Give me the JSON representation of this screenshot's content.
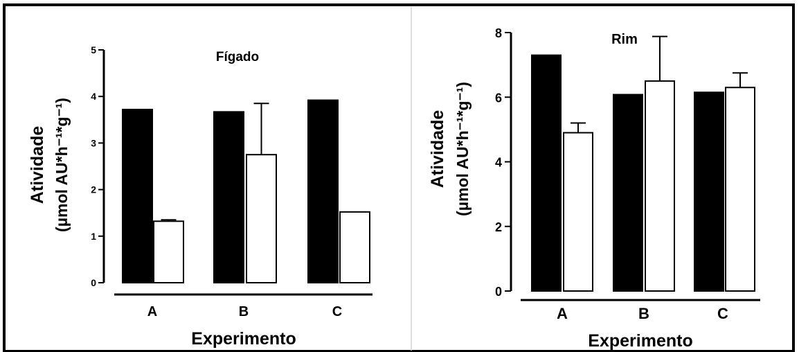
{
  "colors": {
    "filled_bar": "#000000",
    "open_bar": "#ffffff",
    "axis": "#000000",
    "panel_divider": "#d4d4d4"
  },
  "chart_data": [
    {
      "type": "bar",
      "title": "Fígado",
      "xlabel": "Experimento",
      "ylabel_line1": "Atividade",
      "ylabel_line2": "(µmol AU*h⁻¹*g⁻¹)",
      "ylim": [
        0,
        5
      ],
      "yticks": [
        "0",
        "1",
        "2",
        "3",
        "4",
        "5"
      ],
      "categories": [
        "A",
        "B",
        "C"
      ],
      "grid": false,
      "legend": "none",
      "series": [
        {
          "fill": "filled",
          "values": [
            3.72,
            3.67,
            3.92
          ],
          "errors": [
            0,
            0,
            0
          ]
        },
        {
          "fill": "open",
          "values": [
            1.32,
            2.75,
            1.52
          ],
          "errors": [
            0.03,
            1.1,
            0
          ]
        }
      ]
    },
    {
      "type": "bar",
      "title": "Rim",
      "xlabel": "Experimento",
      "ylabel_line1": "Atividade",
      "ylabel_line2": "(µmol AU*h⁻¹*g⁻¹)",
      "ylim": [
        0,
        8
      ],
      "yticks": [
        "0",
        "2",
        "4",
        "6",
        "8"
      ],
      "categories": [
        "A",
        "B",
        "C"
      ],
      "grid": false,
      "legend": "none",
      "series": [
        {
          "fill": "filled",
          "values": [
            7.3,
            6.08,
            6.15
          ],
          "errors": [
            0,
            0,
            0
          ]
        },
        {
          "fill": "open",
          "values": [
            4.9,
            6.5,
            6.3
          ],
          "errors": [
            0.3,
            1.38,
            0.45
          ]
        }
      ]
    }
  ]
}
